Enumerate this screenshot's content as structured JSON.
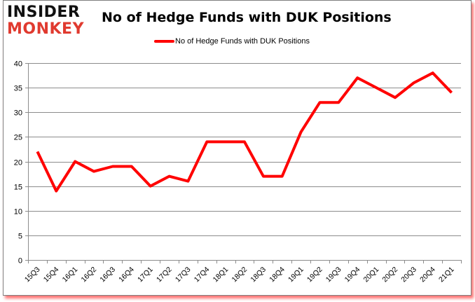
{
  "brand": {
    "top": "INSIDER",
    "bottom": "MONKEY"
  },
  "chart_data": {
    "type": "line",
    "title": "No of Hedge Funds with DUK Positions",
    "xlabel": "",
    "ylabel": "",
    "ylim": [
      0,
      40
    ],
    "yticks": [
      0,
      5,
      10,
      15,
      20,
      25,
      30,
      35,
      40
    ],
    "grid": true,
    "legend_position": "top",
    "categories": [
      "15Q3",
      "15Q4",
      "16Q1",
      "16Q2",
      "16Q3",
      "16Q4",
      "17Q1",
      "17Q2",
      "17Q3",
      "17Q4",
      "18Q1",
      "18Q2",
      "18Q3",
      "18Q4",
      "19Q1",
      "19Q2",
      "19Q3",
      "19Q4",
      "20Q1",
      "20Q2",
      "20Q3",
      "20Q4",
      "21Q1"
    ],
    "series": [
      {
        "name": "No of Hedge Funds with DUK Positions",
        "color": "#ff0000",
        "values": [
          22,
          14,
          20,
          18,
          19,
          19,
          15,
          17,
          16,
          24,
          24,
          24,
          17,
          17,
          26,
          32,
          32,
          37,
          35,
          33,
          36,
          38,
          34
        ]
      }
    ]
  }
}
